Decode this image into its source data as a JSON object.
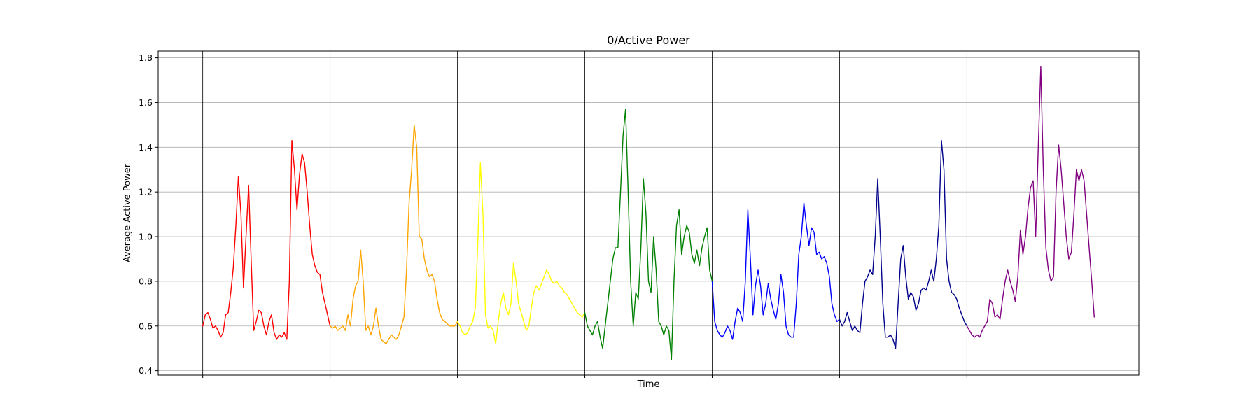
{
  "chart_data": {
    "type": "line",
    "title": "0/Active Power",
    "xlabel": "Time",
    "ylabel": "Average Active Power",
    "ylim": [
      0.38,
      1.83
    ],
    "yticks": [
      0.4,
      0.6,
      0.8,
      1.0,
      1.2,
      1.4,
      1.6,
      1.8
    ],
    "ytick_labels": [
      "0.4",
      "0.6",
      "0.8",
      "1.0",
      "1.2",
      "1.4",
      "1.6",
      "1.8"
    ],
    "grid": "horizontal",
    "x_range": [
      -0.35,
      7.35
    ],
    "segment_boundaries": [
      0,
      1,
      2,
      3,
      4,
      5,
      6
    ],
    "series": [
      {
        "color": "#ff0000",
        "x": [
          -0.0,
          0.02,
          0.04,
          0.06,
          0.08,
          0.1,
          0.12,
          0.14,
          0.16,
          0.18,
          0.2,
          0.22,
          0.24,
          0.26,
          0.28,
          0.3,
          0.32,
          0.34,
          0.36,
          0.38,
          0.4,
          0.42,
          0.44,
          0.46,
          0.48,
          0.5,
          0.52,
          0.54,
          0.56,
          0.58,
          0.6,
          0.62,
          0.64,
          0.66,
          0.68,
          0.7,
          0.72,
          0.74,
          0.76,
          0.78,
          0.8,
          0.82,
          0.84,
          0.86,
          0.88,
          0.9,
          0.92,
          0.94,
          0.96,
          0.98,
          1.0
        ],
        "y": [
          0.6,
          0.65,
          0.66,
          0.63,
          0.59,
          0.6,
          0.58,
          0.55,
          0.57,
          0.65,
          0.66,
          0.75,
          0.86,
          1.05,
          1.27,
          1.1,
          0.77,
          1.0,
          1.23,
          0.9,
          0.58,
          0.62,
          0.67,
          0.66,
          0.6,
          0.56,
          0.62,
          0.65,
          0.57,
          0.54,
          0.56,
          0.55,
          0.57,
          0.54,
          0.8,
          1.43,
          1.3,
          1.12,
          1.28,
          1.37,
          1.33,
          1.2,
          1.05,
          0.92,
          0.87,
          0.84,
          0.83,
          0.75,
          0.7,
          0.65,
          0.6
        ]
      },
      {
        "color": "#ffa500",
        "x": [
          1.0,
          1.02,
          1.04,
          1.06,
          1.08,
          1.1,
          1.12,
          1.14,
          1.16,
          1.18,
          1.2,
          1.22,
          1.24,
          1.26,
          1.28,
          1.3,
          1.32,
          1.34,
          1.36,
          1.38,
          1.4,
          1.42,
          1.44,
          1.46,
          1.48,
          1.5,
          1.52,
          1.54,
          1.56,
          1.58,
          1.6,
          1.62,
          1.64,
          1.66,
          1.68,
          1.7,
          1.72,
          1.74,
          1.76,
          1.78,
          1.8,
          1.82,
          1.84,
          1.86,
          1.88,
          1.9,
          1.92,
          1.94,
          1.96,
          1.98,
          2.0
        ],
        "y": [
          0.6,
          0.59,
          0.6,
          0.58,
          0.59,
          0.6,
          0.58,
          0.65,
          0.6,
          0.72,
          0.78,
          0.8,
          0.94,
          0.8,
          0.58,
          0.6,
          0.56,
          0.6,
          0.68,
          0.6,
          0.54,
          0.53,
          0.52,
          0.54,
          0.56,
          0.55,
          0.54,
          0.56,
          0.6,
          0.64,
          0.85,
          1.15,
          1.3,
          1.5,
          1.4,
          1.0,
          0.99,
          0.9,
          0.85,
          0.82,
          0.83,
          0.8,
          0.72,
          0.66,
          0.63,
          0.62,
          0.61,
          0.6,
          0.6,
          0.6,
          0.62
        ]
      },
      {
        "color": "#ffff00",
        "x": [
          2.0,
          2.02,
          2.04,
          2.06,
          2.08,
          2.1,
          2.12,
          2.14,
          2.16,
          2.18,
          2.2,
          2.22,
          2.24,
          2.26,
          2.28,
          2.3,
          2.32,
          2.34,
          2.36,
          2.38,
          2.4,
          2.42,
          2.44,
          2.46,
          2.48,
          2.5,
          2.52,
          2.54,
          2.56,
          2.58,
          2.6,
          2.62,
          2.64,
          2.66,
          2.68,
          2.7,
          2.72,
          2.74,
          2.76,
          2.78,
          2.8,
          2.82,
          2.84,
          2.86,
          2.88,
          2.9,
          2.92,
          2.94,
          2.96,
          2.98,
          3.0
        ],
        "y": [
          0.62,
          0.6,
          0.57,
          0.56,
          0.57,
          0.6,
          0.62,
          0.68,
          0.98,
          1.33,
          1.1,
          0.65,
          0.59,
          0.6,
          0.58,
          0.52,
          0.62,
          0.7,
          0.75,
          0.68,
          0.65,
          0.7,
          0.88,
          0.8,
          0.7,
          0.66,
          0.62,
          0.58,
          0.6,
          0.68,
          0.75,
          0.78,
          0.76,
          0.79,
          0.82,
          0.85,
          0.83,
          0.8,
          0.79,
          0.8,
          0.78,
          0.77,
          0.75,
          0.74,
          0.72,
          0.7,
          0.68,
          0.66,
          0.65,
          0.64,
          0.66
        ]
      },
      {
        "color": "#008000",
        "x": [
          3.0,
          3.02,
          3.04,
          3.06,
          3.08,
          3.1,
          3.12,
          3.14,
          3.16,
          3.18,
          3.2,
          3.22,
          3.24,
          3.26,
          3.28,
          3.3,
          3.32,
          3.34,
          3.36,
          3.38,
          3.4,
          3.42,
          3.44,
          3.46,
          3.48,
          3.5,
          3.52,
          3.54,
          3.56,
          3.58,
          3.6,
          3.62,
          3.64,
          3.66,
          3.68,
          3.7,
          3.72,
          3.74,
          3.76,
          3.78,
          3.8,
          3.82,
          3.84,
          3.86,
          3.88,
          3.9,
          3.92,
          3.94,
          3.96,
          3.98,
          4.0
        ],
        "y": [
          0.66,
          0.6,
          0.58,
          0.56,
          0.6,
          0.62,
          0.55,
          0.5,
          0.6,
          0.7,
          0.8,
          0.9,
          0.95,
          0.95,
          1.2,
          1.45,
          1.57,
          1.2,
          0.8,
          0.6,
          0.75,
          0.72,
          0.95,
          1.26,
          1.1,
          0.8,
          0.75,
          1.0,
          0.85,
          0.62,
          0.6,
          0.56,
          0.6,
          0.58,
          0.45,
          0.8,
          1.05,
          1.12,
          0.92,
          1.0,
          1.05,
          1.02,
          0.92,
          0.88,
          0.94,
          0.87,
          0.95,
          1.0,
          1.04,
          0.85,
          0.8
        ]
      },
      {
        "color": "#0000ff",
        "x": [
          4.0,
          4.02,
          4.04,
          4.06,
          4.08,
          4.1,
          4.12,
          4.14,
          4.16,
          4.18,
          4.2,
          4.22,
          4.24,
          4.26,
          4.28,
          4.3,
          4.32,
          4.34,
          4.36,
          4.38,
          4.4,
          4.42,
          4.44,
          4.46,
          4.48,
          4.5,
          4.52,
          4.54,
          4.56,
          4.58,
          4.6,
          4.62,
          4.64,
          4.66,
          4.68,
          4.7,
          4.72,
          4.74,
          4.76,
          4.78,
          4.8,
          4.82,
          4.84,
          4.86,
          4.88,
          4.9,
          4.92,
          4.94,
          4.96,
          4.98,
          5.0
        ],
        "y": [
          0.8,
          0.62,
          0.58,
          0.56,
          0.55,
          0.57,
          0.6,
          0.58,
          0.54,
          0.62,
          0.68,
          0.66,
          0.62,
          0.8,
          1.12,
          0.9,
          0.65,
          0.78,
          0.85,
          0.78,
          0.65,
          0.7,
          0.79,
          0.72,
          0.67,
          0.63,
          0.7,
          0.83,
          0.75,
          0.6,
          0.56,
          0.55,
          0.55,
          0.7,
          0.92,
          1.0,
          1.15,
          1.05,
          0.96,
          1.04,
          1.02,
          0.92,
          0.93,
          0.9,
          0.91,
          0.88,
          0.82,
          0.7,
          0.65,
          0.62,
          0.63
        ]
      },
      {
        "color": "#00008b",
        "x": [
          5.0,
          5.02,
          5.04,
          5.06,
          5.08,
          5.1,
          5.12,
          5.14,
          5.16,
          5.18,
          5.2,
          5.22,
          5.24,
          5.26,
          5.28,
          5.3,
          5.32,
          5.34,
          5.36,
          5.38,
          5.4,
          5.42,
          5.44,
          5.46,
          5.48,
          5.5,
          5.52,
          5.54,
          5.56,
          5.58,
          5.6,
          5.62,
          5.64,
          5.66,
          5.68,
          5.7,
          5.72,
          5.74,
          5.76,
          5.78,
          5.8,
          5.82,
          5.84,
          5.86,
          5.88,
          5.9,
          5.92,
          5.94,
          5.96,
          5.98,
          6.0
        ],
        "y": [
          0.63,
          0.6,
          0.62,
          0.66,
          0.62,
          0.58,
          0.6,
          0.58,
          0.57,
          0.7,
          0.8,
          0.82,
          0.85,
          0.83,
          1.0,
          1.26,
          1.0,
          0.7,
          0.55,
          0.55,
          0.56,
          0.54,
          0.5,
          0.7,
          0.9,
          0.96,
          0.82,
          0.72,
          0.75,
          0.73,
          0.67,
          0.7,
          0.76,
          0.77,
          0.76,
          0.8,
          0.85,
          0.8,
          0.9,
          1.05,
          1.43,
          1.3,
          0.9,
          0.8,
          0.75,
          0.74,
          0.72,
          0.68,
          0.65,
          0.62,
          0.6
        ]
      },
      {
        "color": "#800080",
        "x": [
          6.0,
          6.02,
          6.04,
          6.06,
          6.08,
          6.1,
          6.12,
          6.14,
          6.16,
          6.18,
          6.2,
          6.22,
          6.24,
          6.26,
          6.28,
          6.3,
          6.32,
          6.34,
          6.36,
          6.38,
          6.4,
          6.42,
          6.44,
          6.46,
          6.48,
          6.5,
          6.52,
          6.54,
          6.56,
          6.58,
          6.6,
          6.62,
          6.64,
          6.66,
          6.68,
          6.7,
          6.72,
          6.74,
          6.76,
          6.78,
          6.8,
          6.82,
          6.84,
          6.86,
          6.88,
          6.9,
          6.92,
          6.94,
          6.96,
          6.98,
          7.0
        ],
        "y": [
          0.6,
          0.58,
          0.56,
          0.55,
          0.56,
          0.55,
          0.58,
          0.6,
          0.62,
          0.72,
          0.7,
          0.64,
          0.65,
          0.63,
          0.72,
          0.8,
          0.85,
          0.8,
          0.76,
          0.71,
          0.82,
          1.03,
          0.92,
          1.0,
          1.13,
          1.22,
          1.25,
          1.0,
          1.4,
          1.76,
          1.3,
          0.95,
          0.85,
          0.8,
          0.82,
          1.2,
          1.41,
          1.3,
          1.15,
          1.0,
          0.9,
          0.93,
          1.1,
          1.3,
          1.25,
          1.3,
          1.25,
          1.1,
          0.95,
          0.8,
          0.64
        ]
      }
    ]
  }
}
